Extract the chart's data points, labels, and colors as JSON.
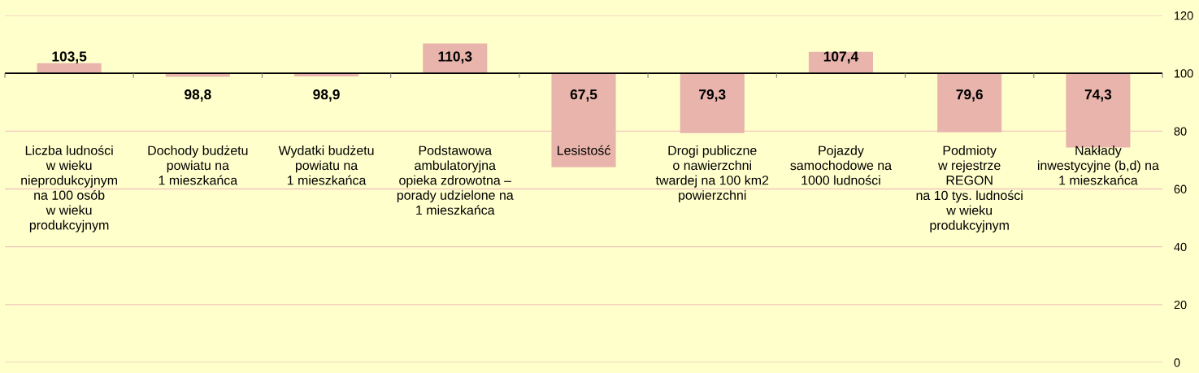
{
  "chart_data": {
    "type": "bar",
    "categories": [
      "Liczba ludności\nw wieku\nnieprodukcyjnym\nna 100 osób\nw wieku\nprodukcyjnym",
      "Dochody budżetu\npowiatu na\n1 mieszkańca",
      "Wydatki budżetu\npowiatu na\n1 mieszkańca",
      "Podstawowa\nambulatoryjna\nopieka zdrowotna –\nporady udzielone na\n1 mieszkańca",
      "Lesistość",
      "Drogi publiczne\no nawierzchni\ntwardej na 100 km2\npowierzchni",
      "Pojazdy\nsamochodowe na\n1000 ludności",
      "Podmioty\nw rejestrze\nREGON\nna 10 tys. ludności\nw wieku\nprodukcyjnym",
      "Nakłady\ninwestycyjne (b,d) na\n1 mieszkańca"
    ],
    "base": [
      100,
      100,
      100,
      100,
      100,
      100,
      100,
      100,
      100
    ],
    "values": [
      3.5,
      -1.2,
      -1.1,
      10.3,
      -32.5,
      -20.7,
      7.4,
      -20.4,
      -25.7
    ],
    "value_labels": [
      "103,5",
      "98,8",
      "98,9",
      "110,3",
      "67,5",
      "79,3",
      "107,4",
      "79,6",
      "74,3"
    ],
    "color": "#e8b4ab",
    "ylim": [
      0,
      120
    ],
    "yticks": [
      0,
      20,
      40,
      60,
      80,
      100,
      120
    ],
    "ref_lines": [
      {
        "axis": "y",
        "value": 100,
        "color": "#000000"
      }
    ],
    "grid": "y"
  }
}
